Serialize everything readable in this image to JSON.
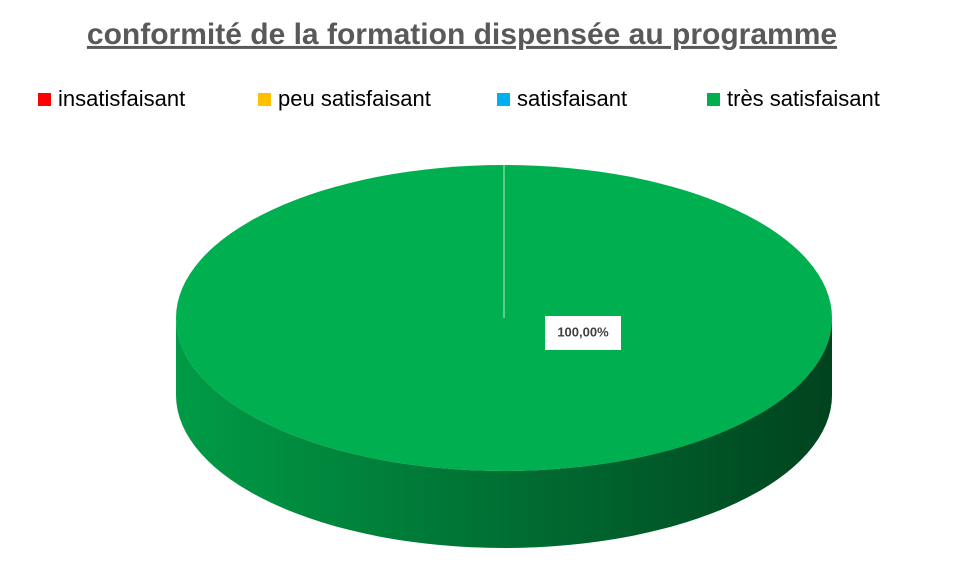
{
  "chart_data": {
    "type": "pie",
    "title": "conformité de la formation dispensée au programme",
    "categories": [
      "insatisfaisant",
      "peu satisfaisant",
      "satisfaisant",
      "très satisfaisant"
    ],
    "values": [
      0,
      0,
      0,
      100
    ],
    "value_labels": [
      null,
      null,
      null,
      "100,00%"
    ],
    "colors": [
      "#ff0000",
      "#ffc000",
      "#00b0f0",
      "#00b050"
    ],
    "legend": "top"
  }
}
